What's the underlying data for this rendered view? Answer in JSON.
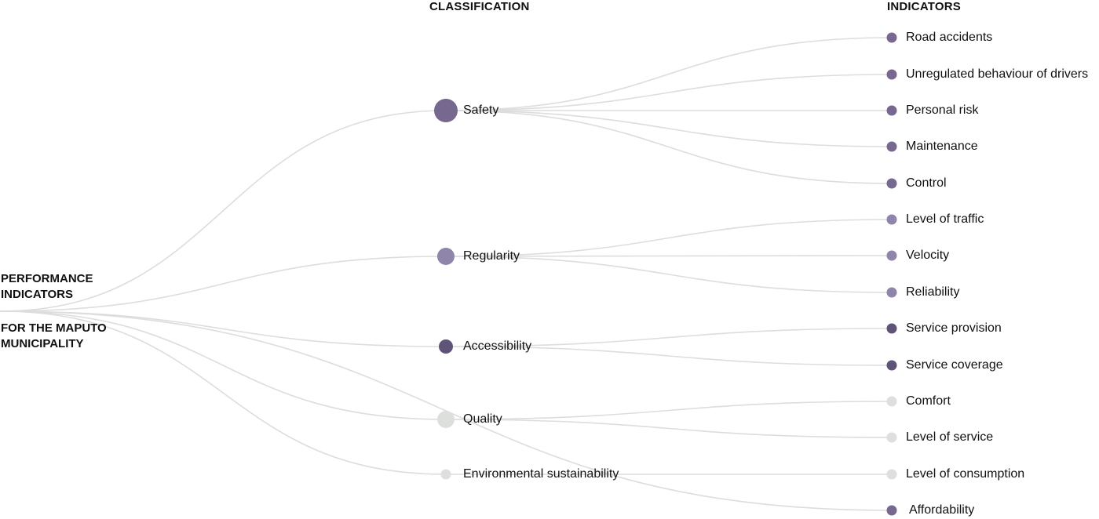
{
  "headers": {
    "classification": "CLASSIFICATION",
    "indicators": "INDICATORS"
  },
  "root": {
    "line1": "PERFORMANCE\nINDICATORS",
    "line2": "FOR THE MAPUTO\nMUNICIPALITY"
  },
  "colors": {
    "purple": "#76688f",
    "purple_light": "#8f84a9",
    "purple_dark": "#5f5478",
    "gray": "#dddfdc",
    "link": "#dcdedb"
  },
  "categories": [
    {
      "id": "safety",
      "label": "Safety",
      "color": "#76688f",
      "size": "large"
    },
    {
      "id": "regularity",
      "label": "Regularity",
      "color": "#8f84a9",
      "size": "medium"
    },
    {
      "id": "accessibility",
      "label": "Accessibility",
      "color": "#5f5478",
      "size": "small"
    },
    {
      "id": "quality",
      "label": "Quality",
      "color": "#dddfdc",
      "size": "medium"
    },
    {
      "id": "environmental",
      "label": "Environmental sustainability",
      "color": "#dddfdc",
      "size": "tiny"
    }
  ],
  "indicators": [
    {
      "label": "Road accidents",
      "parent": "safety",
      "color": "#76688f"
    },
    {
      "label": "Unregulated behaviour of drivers",
      "parent": "safety",
      "color": "#76688f"
    },
    {
      "label": "Personal risk",
      "parent": "safety",
      "color": "#76688f"
    },
    {
      "label": "Maintenance",
      "parent": "safety",
      "color": "#76688f"
    },
    {
      "label": "Control",
      "parent": "safety",
      "color": "#76688f"
    },
    {
      "label": "Level of traffic",
      "parent": "regularity",
      "color": "#8f84a9"
    },
    {
      "label": "Velocity",
      "parent": "regularity",
      "color": "#8f84a9"
    },
    {
      "label": "Reliability",
      "parent": "regularity",
      "color": "#8f84a9"
    },
    {
      "label": "Service provision",
      "parent": "accessibility",
      "color": "#5f5478"
    },
    {
      "label": "Service coverage",
      "parent": "accessibility",
      "color": "#5f5478"
    },
    {
      "label": "Comfort",
      "parent": "quality",
      "color": "#dddfdc"
    },
    {
      "label": "Level of service",
      "parent": "quality",
      "color": "#dddfdc"
    },
    {
      "label": "Level of consumption",
      "parent": "environmental",
      "color": "#dddfdc"
    },
    {
      "label": "Affordability",
      "parent": "root",
      "color": "#76688f"
    }
  ]
}
